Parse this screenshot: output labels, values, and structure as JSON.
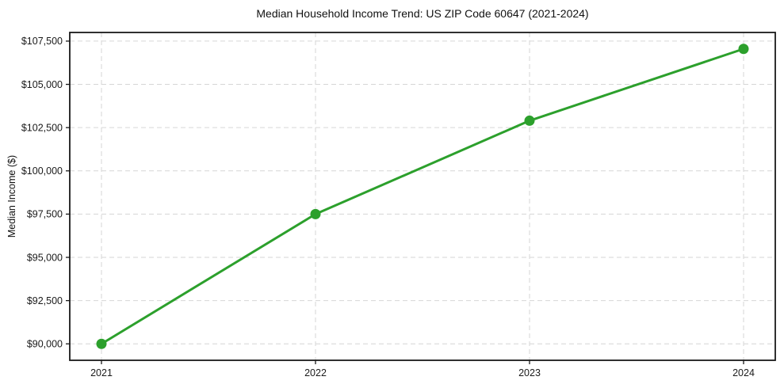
{
  "page": {
    "background": "#ffffff"
  },
  "chart_data": {
    "type": "line",
    "title": "Median Household Income Trend: US ZIP Code 60647 (2021-2024)",
    "xlabel": "",
    "ylabel": "Median Income ($)",
    "categories": [
      "2021",
      "2022",
      "2023",
      "2024"
    ],
    "series": [
      {
        "values": [
          90000,
          97500,
          102900,
          107050
        ],
        "color": "#2ca02c",
        "marker": "circle",
        "line_width": 3,
        "marker_radius": 6.5
      }
    ],
    "ylim": [
      89050,
      108000
    ],
    "yticks": [
      90000,
      92500,
      95000,
      97500,
      100000,
      102500,
      105000,
      107500
    ],
    "ytick_labels": [
      "$90,000",
      "$92,500",
      "$95,000",
      "$97,500",
      "$100,000",
      "$102,500",
      "$105,000",
      "$107,500"
    ],
    "grid": true,
    "grid_style": "dashed",
    "grid_color": "#d6d6d6",
    "axis_color": "#1a1a1a",
    "text_color": "#1a1a1a",
    "legend": "none"
  }
}
